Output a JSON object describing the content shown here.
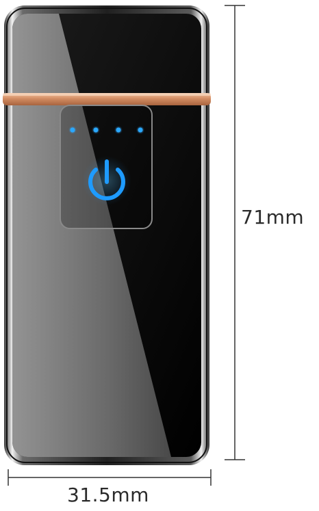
{
  "dimensions": {
    "height_label": "71mm",
    "width_label": "31.5mm"
  },
  "indicator": {
    "dots_count": 4,
    "icon": "power-icon"
  },
  "colors": {
    "body": "#0a0a0a",
    "chrome": "#d8d8d8",
    "copper_band": "#d4946e",
    "led_blue": "#1e9bff",
    "dimension_line": "#333333"
  }
}
